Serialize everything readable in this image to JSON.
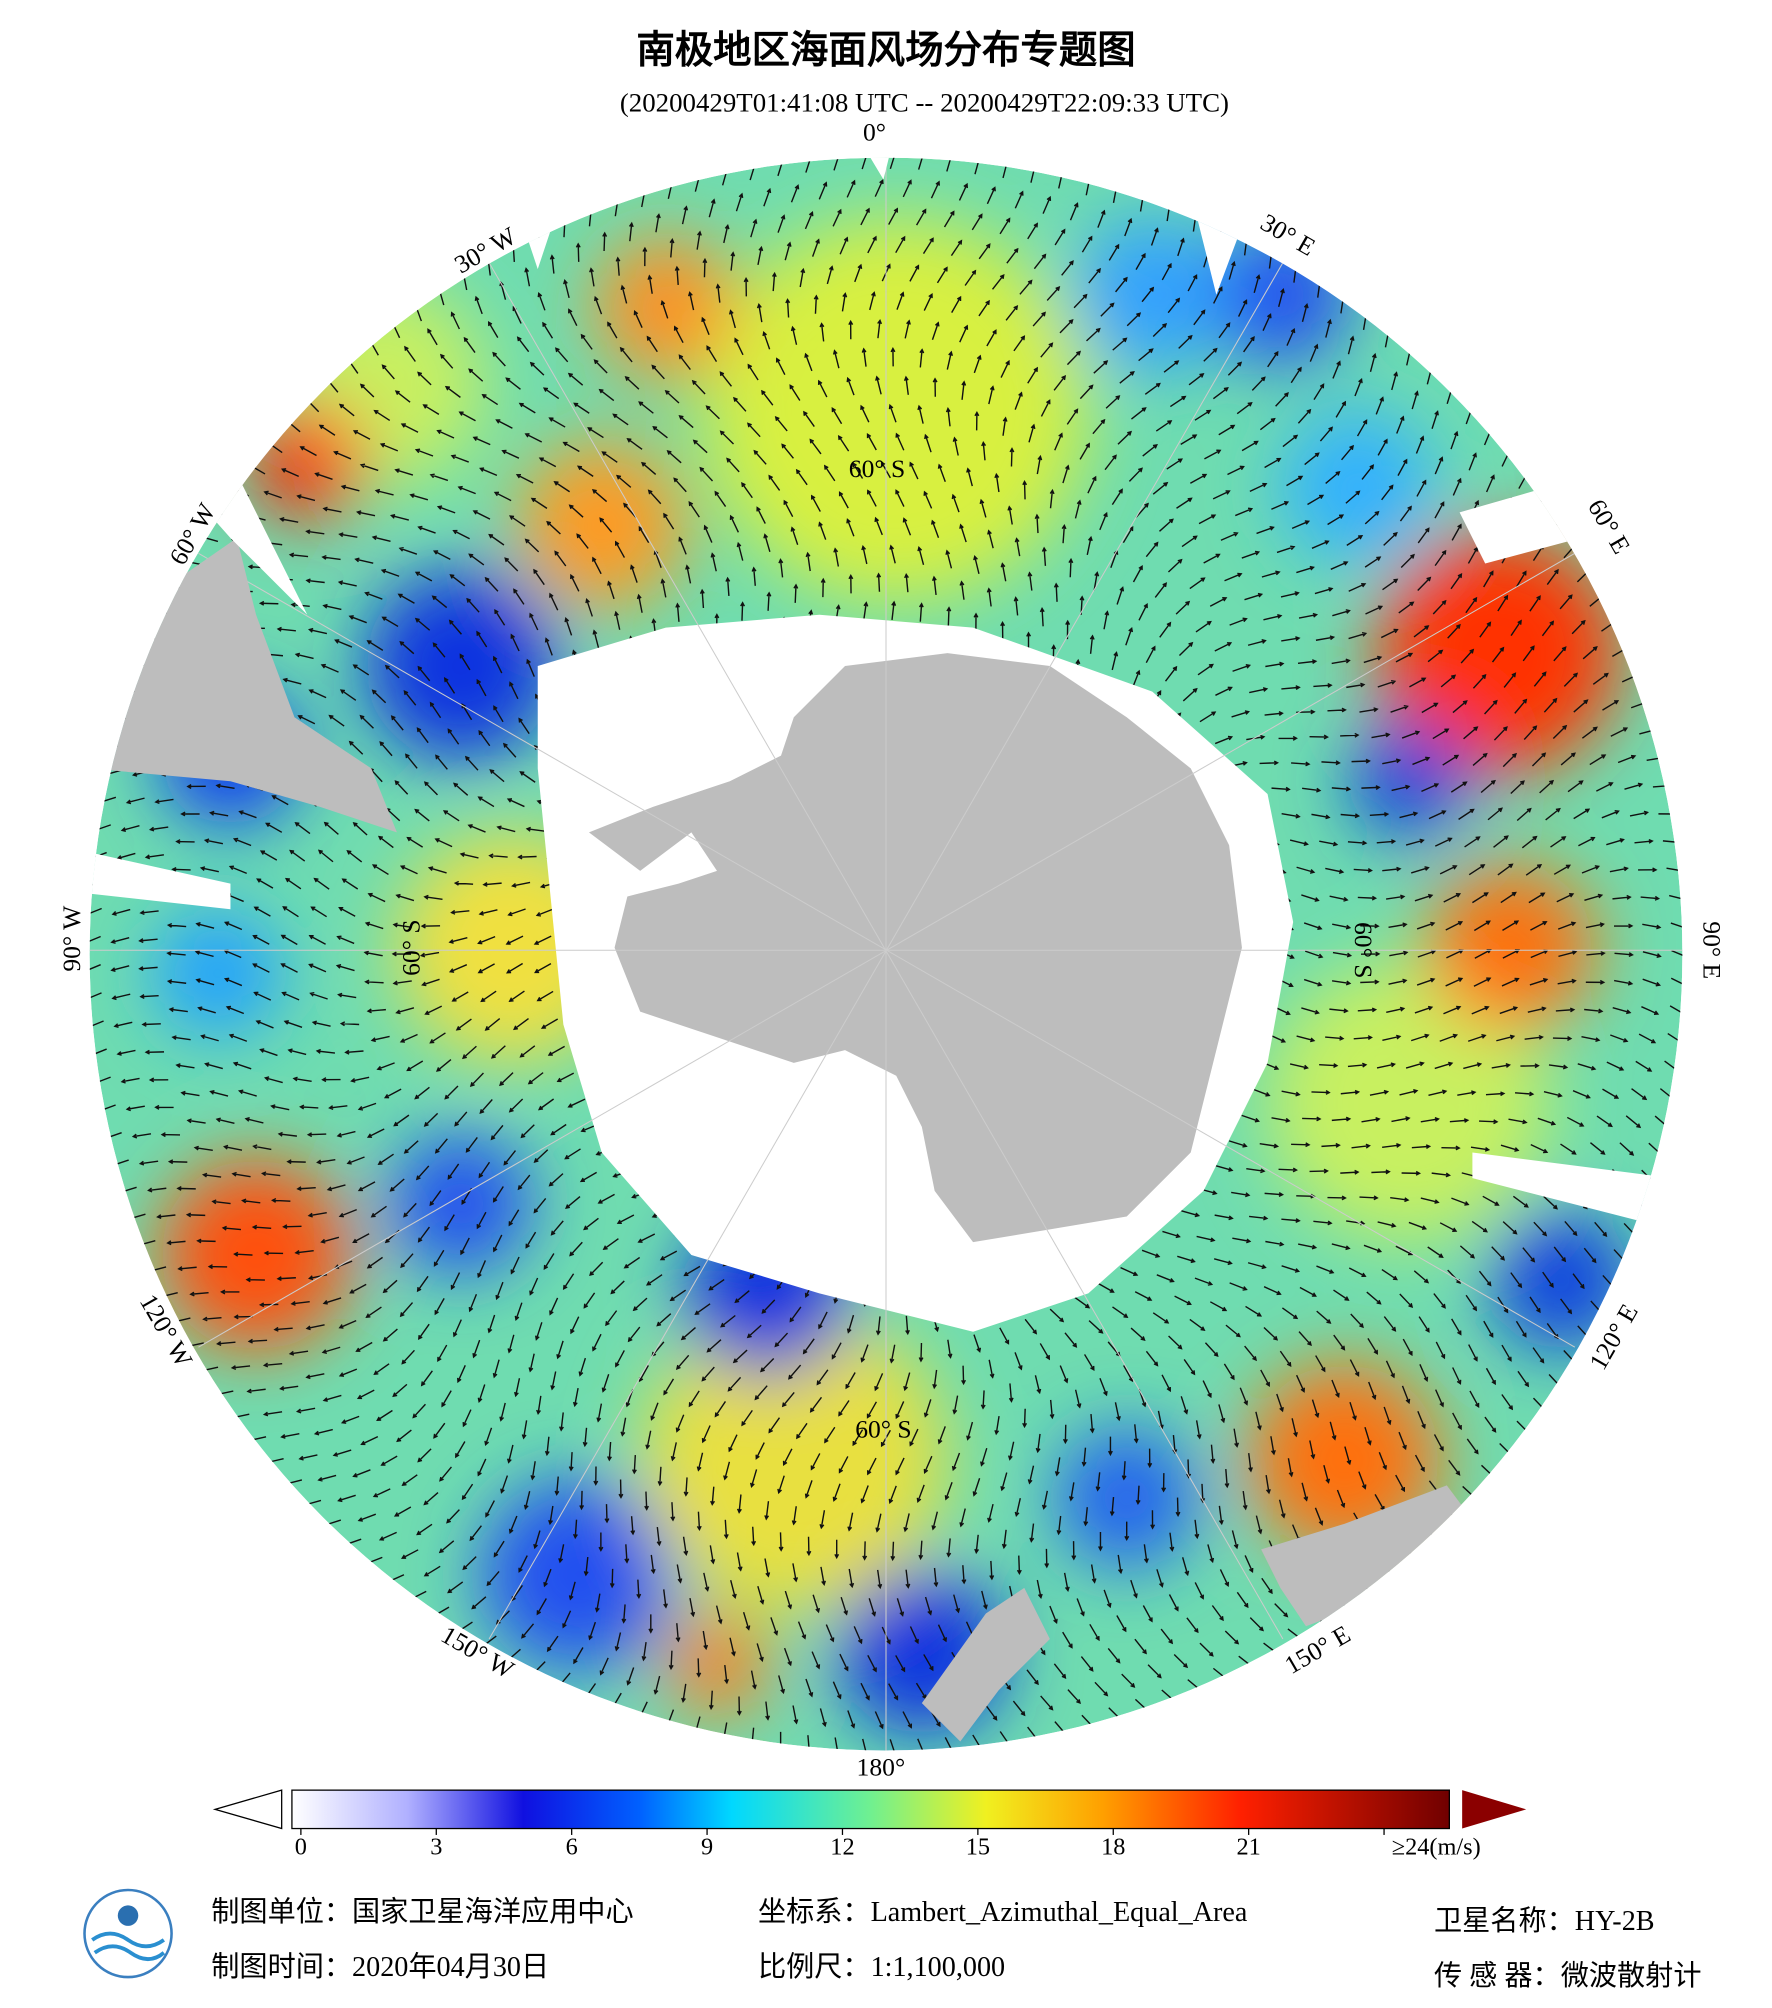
{
  "title": "南极地区海面风场分布专题图",
  "subtitle": "(20200429T01:41:08 UTC -- 20200429T22:09:33 UTC)",
  "map": {
    "longitude_labels": [
      "0°",
      "30° E",
      "60° E",
      "90° E",
      "120° E",
      "150° E",
      "180°",
      "150° W",
      "120° W",
      "90° W",
      "60° W",
      "30° W"
    ],
    "latitude_labels": [
      "60° S",
      "60° S",
      "60° S",
      "60° S"
    ]
  },
  "colorbar": {
    "lim": [
      0,
      24
    ],
    "ticks": [
      0,
      3,
      6,
      9,
      12,
      15,
      18,
      21,
      {
        "value": 24,
        "label": "≥24(m/s)"
      }
    ]
  },
  "footer": {
    "unit": "制图单位：国家卫星海洋应用中心",
    "date": "制图时间：2020年04月30日",
    "crs": "坐标系：Lambert_Azimuthal_Equal_Area",
    "scale": "比例尺：1:1,100,000",
    "satellite": "卫星名称：HY-2B",
    "sensor": "传 感 器：微波散射计"
  }
}
